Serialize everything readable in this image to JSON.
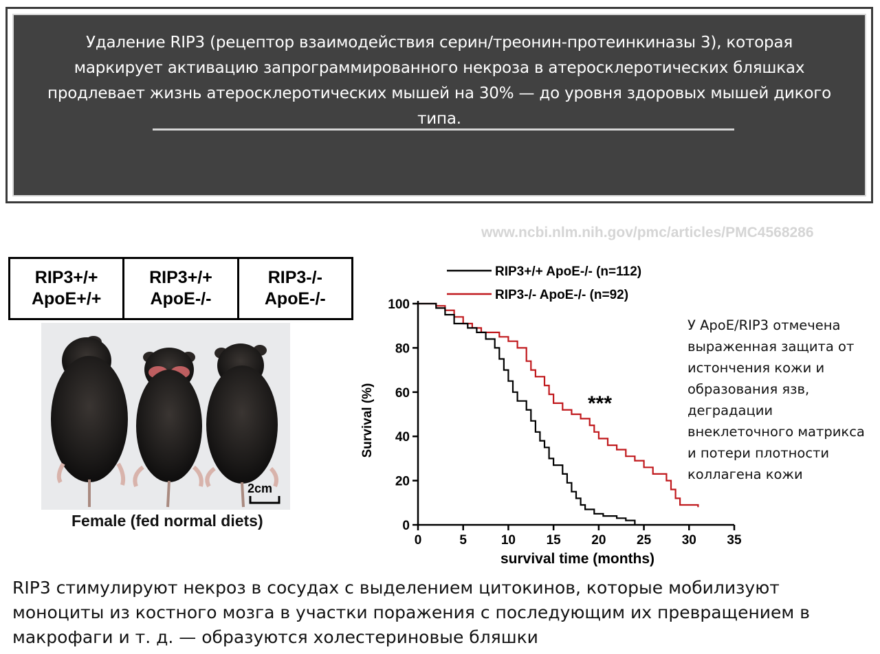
{
  "banner": {
    "text": "Удаление RIP3 (рецептор взаимодействия серин/треонин-протеинкиназы 3), которая маркирует активацию запрограммированного некроза в атеросклеротических бляшках продлевает жизнь атеросклеротических мышей на 30% — до уровня здоровых мышей дикого типа."
  },
  "source_url": "www.ncbi.nlm.nih.gov/pmc/articles/PMC4568286",
  "genotypes": [
    {
      "line1": "RIP3+/+",
      "line2": "ApoE+/+"
    },
    {
      "line1": "RIP3+/+",
      "line2": "ApoE-/-"
    },
    {
      "line1": "RIP3-/-",
      "line2": "ApoE-/-"
    }
  ],
  "photo": {
    "scale_label": "2cm",
    "caption": "Female (fed normal diets)"
  },
  "side_note": "У ApoE/RIP3 отмечена выраженная защита от истончения кожи и образования язв, деградации внеклеточного матрикса и потери плотности коллагена кожи",
  "bottom_text": "RIP3 стимулируют некроз в сосудах с выделением цитокинов, которые мобилизуют моноциты из костного мозга в участки поражения с последующим их превращением в макрофаги и т. д. — образуются холестериновые бляшки",
  "colors": {
    "banner_bg": "#414141",
    "series_black": "#000000",
    "series_red": "#c0181c"
  },
  "chart_data": {
    "type": "line",
    "xlabel": "survival time (months)",
    "ylabel": "Survival (%)",
    "xlim": [
      0,
      35
    ],
    "ylim": [
      0,
      100
    ],
    "xticks": [
      0,
      5,
      10,
      15,
      20,
      25,
      30,
      35
    ],
    "yticks": [
      0,
      20,
      40,
      60,
      80,
      100
    ],
    "annotation": "***",
    "legend_position": "top",
    "series": [
      {
        "name": "RIP3+/+ ApoE-/- (n=112)",
        "color": "#000000",
        "points": [
          [
            0,
            100
          ],
          [
            2,
            100
          ],
          [
            2,
            98
          ],
          [
            3,
            98
          ],
          [
            3,
            95
          ],
          [
            4,
            95
          ],
          [
            4,
            91
          ],
          [
            5.5,
            91
          ],
          [
            5.5,
            89
          ],
          [
            6.5,
            89
          ],
          [
            6.5,
            87
          ],
          [
            7.5,
            87
          ],
          [
            7.5,
            84
          ],
          [
            8.5,
            84
          ],
          [
            8.5,
            80
          ],
          [
            9,
            80
          ],
          [
            9,
            75
          ],
          [
            9.5,
            75
          ],
          [
            9.5,
            70
          ],
          [
            10,
            70
          ],
          [
            10,
            65
          ],
          [
            10.5,
            65
          ],
          [
            10.5,
            60
          ],
          [
            11,
            60
          ],
          [
            11,
            56
          ],
          [
            12,
            56
          ],
          [
            12,
            52
          ],
          [
            12.5,
            52
          ],
          [
            12.5,
            47
          ],
          [
            13,
            47
          ],
          [
            13,
            42
          ],
          [
            13.5,
            42
          ],
          [
            13.5,
            38
          ],
          [
            14,
            38
          ],
          [
            14,
            35
          ],
          [
            14.5,
            35
          ],
          [
            14.5,
            30
          ],
          [
            15,
            30
          ],
          [
            15,
            27
          ],
          [
            16,
            27
          ],
          [
            16,
            23
          ],
          [
            16.5,
            23
          ],
          [
            16.5,
            19
          ],
          [
            17,
            19
          ],
          [
            17,
            15
          ],
          [
            17.5,
            15
          ],
          [
            17.5,
            12
          ],
          [
            18,
            12
          ],
          [
            18,
            9
          ],
          [
            18.5,
            9
          ],
          [
            18.5,
            7
          ],
          [
            19.5,
            7
          ],
          [
            19.5,
            5
          ],
          [
            20.5,
            5
          ],
          [
            20.5,
            4
          ],
          [
            22,
            4
          ],
          [
            22,
            3
          ],
          [
            23,
            3
          ],
          [
            23,
            2
          ],
          [
            24,
            2
          ],
          [
            24,
            0
          ]
        ]
      },
      {
        "name": "RIP3-/- ApoE-/- (n=92)",
        "color": "#c0181c",
        "points": [
          [
            0,
            100
          ],
          [
            2,
            100
          ],
          [
            2,
            99
          ],
          [
            3,
            99
          ],
          [
            3,
            97
          ],
          [
            4,
            97
          ],
          [
            4,
            94
          ],
          [
            5,
            94
          ],
          [
            5,
            91
          ],
          [
            6,
            91
          ],
          [
            6,
            89
          ],
          [
            7,
            89
          ],
          [
            7,
            87
          ],
          [
            9,
            87
          ],
          [
            9,
            85
          ],
          [
            10,
            85
          ],
          [
            10,
            83
          ],
          [
            11,
            83
          ],
          [
            11,
            80
          ],
          [
            12,
            80
          ],
          [
            12,
            74
          ],
          [
            12.5,
            74
          ],
          [
            12.5,
            70
          ],
          [
            13,
            70
          ],
          [
            13,
            67
          ],
          [
            14,
            67
          ],
          [
            14,
            63
          ],
          [
            14.5,
            63
          ],
          [
            14.5,
            59
          ],
          [
            15,
            59
          ],
          [
            15,
            55
          ],
          [
            16,
            55
          ],
          [
            16,
            52
          ],
          [
            17,
            52
          ],
          [
            17,
            50
          ],
          [
            18,
            50
          ],
          [
            18,
            48
          ],
          [
            19,
            48
          ],
          [
            19,
            45
          ],
          [
            19.5,
            45
          ],
          [
            19.5,
            42
          ],
          [
            20,
            42
          ],
          [
            20,
            39
          ],
          [
            21,
            39
          ],
          [
            21,
            36
          ],
          [
            22,
            36
          ],
          [
            22,
            34
          ],
          [
            23,
            34
          ],
          [
            23,
            31
          ],
          [
            24,
            31
          ],
          [
            24,
            29
          ],
          [
            25,
            29
          ],
          [
            25,
            26
          ],
          [
            26,
            26
          ],
          [
            26,
            23
          ],
          [
            27.5,
            23
          ],
          [
            27.5,
            20
          ],
          [
            28,
            20
          ],
          [
            28,
            16
          ],
          [
            28.5,
            16
          ],
          [
            28.5,
            12
          ],
          [
            29,
            12
          ],
          [
            29,
            9
          ],
          [
            31,
            9
          ],
          [
            31,
            8
          ]
        ]
      }
    ]
  }
}
